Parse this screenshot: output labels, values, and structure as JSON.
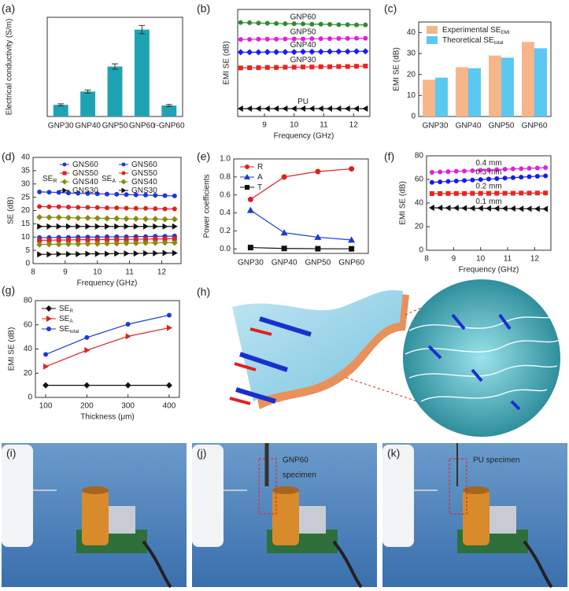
{
  "chart_data": [
    {
      "type": "bar",
      "panel_label": "(a)",
      "ylabel": "Electrical conductivity (S/m)",
      "categories": [
        "GNP30",
        "GNP40",
        "GNP50",
        "GNP60",
        "r-GNP60"
      ],
      "values": [
        340,
        730,
        1460,
        2540,
        320
      ],
      "errors": [
        30,
        45,
        80,
        120,
        30
      ],
      "color": "#1fa3b3",
      "ylim": [
        0,
        2900
      ]
    },
    {
      "type": "line",
      "panel_label": "(b)",
      "xlabel": "Frequency (GHz)",
      "ylabel": "EMI SE (dB)",
      "x": [
        8.2,
        8.5,
        8.8,
        9.1,
        9.4,
        9.7,
        10.0,
        10.3,
        10.6,
        10.9,
        11.2,
        11.5,
        11.8,
        12.1,
        12.4
      ],
      "xlim": [
        8.1,
        12.55
      ],
      "xticks": [
        9,
        10,
        11,
        12
      ],
      "ylim": [
        -3,
        42
      ],
      "legend": "inline",
      "series": [
        {
          "name": "GNP60",
          "color": "#2e8b2e",
          "marker": "circle",
          "values": [
            36.5,
            36.4,
            36.3,
            36.2,
            36.1,
            36.0,
            36.0,
            35.9,
            35.8,
            35.8,
            35.7,
            35.6,
            35.6,
            35.5,
            35.5
          ]
        },
        {
          "name": "GNP50",
          "color": "#e020e0",
          "marker": "circle",
          "values": [
            29.4,
            29.4,
            29.5,
            29.5,
            29.5,
            29.6,
            29.6,
            29.6,
            29.7,
            29.7,
            29.7,
            29.8,
            29.8,
            29.9,
            29.9
          ]
        },
        {
          "name": "GNP40",
          "color": "#1a1aff",
          "marker": "diamond",
          "values": [
            24.0,
            24.0,
            24.0,
            24.1,
            24.1,
            24.1,
            24.1,
            24.2,
            24.2,
            24.2,
            24.3,
            24.3,
            24.3,
            24.4,
            24.4
          ]
        },
        {
          "name": "GNP30",
          "color": "#ee2222",
          "marker": "square",
          "values": [
            17.4,
            17.5,
            17.5,
            17.6,
            17.6,
            17.7,
            17.7,
            17.8,
            17.8,
            17.9,
            17.9,
            18.0,
            18.0,
            18.1,
            18.2
          ]
        },
        {
          "name": "PU",
          "color": "#111111",
          "marker": "triangle-left",
          "values": [
            0.3,
            0.3,
            0.3,
            0.3,
            0.3,
            0.3,
            0.3,
            0.3,
            0.3,
            0.3,
            0.3,
            0.3,
            0.3,
            0.3,
            0.3
          ]
        }
      ]
    },
    {
      "type": "bar",
      "panel_label": "(c)",
      "ylabel": "EMI SE (dB)",
      "categories": [
        "GNP30",
        "GNP40",
        "GNP50",
        "GNP60"
      ],
      "ylim": [
        0,
        45
      ],
      "yticks": [
        0,
        10,
        20,
        30,
        40
      ],
      "legend": "upper left",
      "series": [
        {
          "name": "Experimental SE",
          "subscript": "EMI",
          "color": "#f7b58a",
          "values": [
            17.5,
            23.5,
            29,
            35.5
          ]
        },
        {
          "name": "Theoretical SE",
          "subscript": "total",
          "color": "#5ac8f0",
          "values": [
            18.5,
            23,
            28,
            32.5
          ]
        }
      ]
    },
    {
      "type": "line",
      "panel_label": "(d)",
      "xlabel": "Frequency (GHz)",
      "ylabel": "SE (dB)",
      "x": [
        8.2,
        8.5,
        8.8,
        9.1,
        9.4,
        9.7,
        10.0,
        10.3,
        10.6,
        10.9,
        11.2,
        11.5,
        11.8,
        12.1,
        12.4
      ],
      "xlim": [
        8,
        12.6
      ],
      "xticks": [
        8,
        9,
        10,
        11,
        12
      ],
      "ylim": [
        0,
        40
      ],
      "yticks": [
        0,
        5,
        10,
        15,
        20,
        25,
        30,
        35,
        40
      ],
      "legend": "groups",
      "legend_groups": [
        {
          "name": "SE",
          "subscript": "R"
        },
        {
          "name": "SE",
          "subscript": "A"
        }
      ],
      "series": [
        {
          "name": "GNS60",
          "color": "#2233dd",
          "marker": "circle",
          "values": [
            9.8,
            9.8,
            9.9,
            9.9,
            10.0,
            10.0,
            10.0,
            10.1,
            10.1,
            10.1,
            10.2,
            10.2,
            10.3,
            10.3,
            10.4
          ]
        },
        {
          "name": "GNS50",
          "color": "#e02020",
          "marker": "square",
          "values": [
            8.8,
            8.8,
            8.9,
            8.9,
            9.0,
            9.0,
            9.0,
            9.1,
            9.1,
            9.1,
            9.2,
            9.2,
            9.3,
            9.3,
            9.4
          ]
        },
        {
          "name": "GNS40",
          "color": "#8a8a10",
          "marker": "diamond",
          "values": [
            7.2,
            7.3,
            7.3,
            7.4,
            7.4,
            7.5,
            7.5,
            7.6,
            7.6,
            7.7,
            7.7,
            7.8,
            7.8,
            7.9,
            7.9
          ]
        },
        {
          "name": "GNS30",
          "color": "#111111",
          "marker": "triangle-right",
          "values": [
            3.5,
            3.5,
            3.6,
            3.6,
            3.6,
            3.7,
            3.7,
            3.7,
            3.8,
            3.8,
            3.8,
            3.9,
            3.9,
            4.0,
            4.0
          ]
        },
        {
          "name": "GNS60",
          "color": "#2233dd",
          "marker": "circle",
          "values": [
            27.0,
            26.9,
            26.8,
            26.6,
            26.5,
            26.4,
            26.3,
            26.2,
            26.1,
            26.0,
            25.9,
            25.8,
            25.7,
            25.6,
            25.5
          ]
        },
        {
          "name": "GNS50",
          "color": "#e02020",
          "marker": "circle",
          "values": [
            21.5,
            21.4,
            21.4,
            21.3,
            21.2,
            21.2,
            21.1,
            21.0,
            21.0,
            20.9,
            20.8,
            20.8,
            20.7,
            20.6,
            20.6
          ]
        },
        {
          "name": "GNS40",
          "color": "#8a8a10",
          "marker": "diamond",
          "values": [
            17.5,
            17.4,
            17.4,
            17.3,
            17.2,
            17.2,
            17.1,
            17.0,
            17.0,
            16.9,
            16.9,
            16.8,
            16.8,
            16.7,
            16.7
          ]
        },
        {
          "name": "GNS30",
          "color": "#111111",
          "marker": "triangle-right",
          "values": [
            14.0,
            14.0,
            14.0,
            14.0,
            14.0,
            14.0,
            14.0,
            14.0,
            14.0,
            14.0,
            14.0,
            14.0,
            14.0,
            14.0,
            14.0
          ]
        }
      ]
    },
    {
      "type": "line",
      "panel_label": "(e)",
      "ylabel": "Power coefficients",
      "categories": [
        "GNP30",
        "GNP40",
        "GNP50",
        "GNP60"
      ],
      "ylim": [
        -0.05,
        1.0
      ],
      "yticks": [
        {
          "value": 0,
          "label": "0.0"
        },
        0.2,
        0.4,
        0.6,
        0.8,
        {
          "value": 1,
          "label": "1.0"
        }
      ],
      "legend": "upper left",
      "legend_colored_text": true,
      "series": [
        {
          "name": "R",
          "color": "#e02020",
          "marker": "circle",
          "values": [
            0.55,
            0.8,
            0.86,
            0.89
          ]
        },
        {
          "name": "A",
          "color": "#1a3bd6",
          "marker": "triangle-up",
          "values": [
            0.43,
            0.18,
            0.13,
            0.1
          ]
        },
        {
          "name": "T",
          "color": "#111111",
          "marker": "square",
          "values": [
            0.015,
            0.005,
            0.002,
            0.001
          ]
        }
      ]
    },
    {
      "type": "line",
      "panel_label": "(f)",
      "xlabel": "Frequency (GHz)",
      "ylabel": "EMI SE (dB)",
      "x": [
        8.2,
        8.5,
        8.8,
        9.1,
        9.4,
        9.7,
        10.0,
        10.3,
        10.6,
        10.9,
        11.2,
        11.5,
        11.8,
        12.1,
        12.4
      ],
      "xlim": [
        8,
        12.6
      ],
      "xticks": [
        8,
        9,
        10,
        11,
        12
      ],
      "ylim": [
        0,
        80
      ],
      "yticks": [
        0,
        20,
        40,
        60,
        80
      ],
      "legend": "inline",
      "series": [
        {
          "name": "0.4 mm",
          "color": "#e020e0",
          "marker": "circle",
          "values": [
            66.0,
            66.3,
            66.6,
            66.9,
            67.1,
            67.4,
            67.7,
            68.0,
            68.3,
            68.6,
            68.9,
            69.1,
            69.4,
            69.7,
            70.0
          ]
        },
        {
          "name": "0.3 mm",
          "color": "#1a1aee",
          "marker": "circle",
          "values": [
            57.5,
            57.9,
            58.3,
            58.7,
            59.1,
            59.5,
            59.9,
            60.3,
            60.7,
            61.1,
            61.5,
            61.9,
            62.3,
            62.7,
            63.0
          ]
        },
        {
          "name": "0.2 mm",
          "color": "#ee2222",
          "marker": "square",
          "values": [
            48.0,
            48.0,
            48.1,
            48.1,
            48.1,
            48.2,
            48.2,
            48.2,
            48.3,
            48.3,
            48.3,
            48.4,
            48.4,
            48.5,
            48.5
          ]
        },
        {
          "name": "0.1 mm",
          "color": "#111111",
          "marker": "triangle-left",
          "values": [
            36.0,
            35.9,
            35.8,
            35.8,
            35.7,
            35.6,
            35.6,
            35.5,
            35.4,
            35.4,
            35.3,
            35.2,
            35.2,
            35.1,
            35.0
          ]
        }
      ]
    },
    {
      "type": "line",
      "panel_label": "(g)",
      "xlabel": "Thickness (μm)",
      "ylabel": "EMI SE (dB)",
      "x": [
        100,
        200,
        300,
        400
      ],
      "xlim": [
        75,
        425
      ],
      "xticks": [
        100,
        200,
        300,
        400
      ],
      "ylim": [
        0,
        80
      ],
      "yticks": [
        0,
        20,
        40,
        60,
        80
      ],
      "legend": "upper left",
      "legend_colored_text": true,
      "series": [
        {
          "name": "SE",
          "subscript": "R",
          "color": "#111111",
          "marker": "diamond",
          "values": [
            10,
            10,
            10,
            10
          ]
        },
        {
          "name": "SE",
          "subscript": "A",
          "color": "#e02020",
          "marker": "triangle-right",
          "values": [
            25.5,
            39,
            50.5,
            57.5
          ]
        },
        {
          "name": "SE",
          "subscript": "total",
          "color": "#1a3bd6",
          "marker": "circle",
          "values": [
            35.5,
            49.5,
            60.5,
            68
          ]
        }
      ]
    }
  ],
  "diagram": {
    "label": "(h)"
  },
  "photos": [
    {
      "label": "(i)"
    },
    {
      "label": "(j)",
      "caption": [
        "GNP60",
        "specimen"
      ]
    },
    {
      "label": "(k)",
      "caption": [
        "PU specimen"
      ]
    }
  ]
}
